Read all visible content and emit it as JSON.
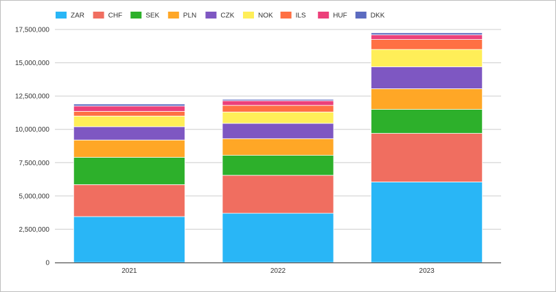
{
  "chart_data": {
    "type": "bar",
    "stacked": true,
    "categories": [
      "2021",
      "2022",
      "2023"
    ],
    "ylim": [
      0,
      17500000
    ],
    "yticks": [
      "0",
      "2,500,000",
      "5,000,000",
      "7,500,000",
      "10,000,000",
      "12,500,000",
      "15,000,000",
      "17,500,000"
    ],
    "grid": true,
    "legend": "top-left",
    "series": [
      {
        "name": "ZAR",
        "color": "#29b6f6",
        "values": [
          3450000,
          3700000,
          6050000
        ]
      },
      {
        "name": "CHF",
        "color": "#f06e60",
        "values": [
          2400000,
          2850000,
          3650000
        ]
      },
      {
        "name": "SEK",
        "color": "#2db02b",
        "values": [
          2050000,
          1500000,
          1800000
        ]
      },
      {
        "name": "PLN",
        "color": "#ffa726",
        "values": [
          1300000,
          1250000,
          1550000
        ]
      },
      {
        "name": "CZK",
        "color": "#7e57c2",
        "values": [
          1000000,
          1150000,
          1650000
        ]
      },
      {
        "name": "NOK",
        "color": "#ffee58",
        "values": [
          800000,
          850000,
          1300000
        ]
      },
      {
        "name": "ILS",
        "color": "#ff7043",
        "values": [
          350000,
          500000,
          750000
        ]
      },
      {
        "name": "HUF",
        "color": "#ec407a",
        "values": [
          400000,
          350000,
          350000
        ]
      },
      {
        "name": "DKK",
        "color": "#5c6bc0",
        "values": [
          150000,
          100000,
          150000
        ]
      }
    ]
  }
}
